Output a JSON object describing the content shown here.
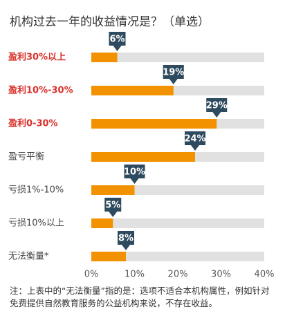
{
  "chart_data": {
    "type": "bar",
    "orientation": "horizontal",
    "title": "机构过去一年的收益情况是？（单选）",
    "categories": [
      "盈利30%以上",
      "盈利10%-30%",
      "盈利0-30%",
      "盈亏平衡",
      "亏损1%-10%",
      "亏损10%以上",
      "无法衡量*"
    ],
    "category_colors": [
      "#d9312b",
      "#d9312b",
      "#d9312b",
      "#444444",
      "#444444",
      "#444444",
      "#444444"
    ],
    "values": [
      6,
      19,
      29,
      24,
      10,
      5,
      8
    ],
    "value_labels": [
      "6%",
      "19%",
      "29%",
      "24%",
      "10%",
      "5%",
      "8%"
    ],
    "color": "#f39200",
    "track_color": "#e1e1e1",
    "label_box_color": "#2e4a5e",
    "xlim": [
      0,
      40
    ],
    "xticks": [
      {
        "value": 0,
        "label": "0%"
      },
      {
        "value": 10,
        "label": "10%"
      },
      {
        "value": 20,
        "label": "20%"
      },
      {
        "value": 30,
        "label": "30%"
      },
      {
        "value": 40,
        "label": "40%"
      }
    ],
    "note": "注：上表中的“无法衡量”指的是：选项不适合本机构属性，例如针对免费提供自然教育服务的公益机构来说，不存在收益。"
  }
}
